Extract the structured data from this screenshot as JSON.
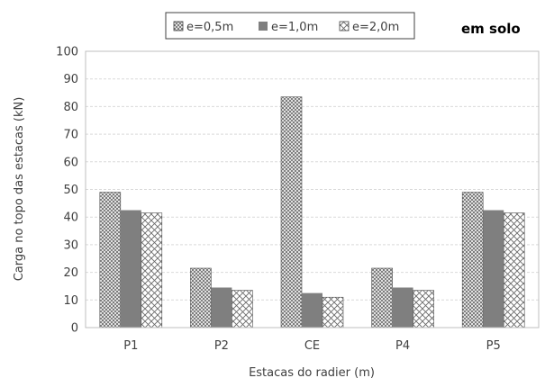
{
  "chart_data": {
    "type": "bar",
    "categories": [
      "P1",
      "P2",
      "CE",
      "P4",
      "P5"
    ],
    "series": [
      {
        "name": "e=0,5m",
        "values": [
          49,
          21.5,
          83.5,
          21.5,
          49
        ]
      },
      {
        "name": "e=1,0m",
        "values": [
          42.5,
          14.5,
          12.5,
          14.5,
          42.5
        ]
      },
      {
        "name": "e=2,0m",
        "values": [
          41.5,
          13.5,
          11,
          13.5,
          41.5
        ]
      }
    ],
    "title": "",
    "annotation": "em solo",
    "xlabel": "Estacas do radier (m)",
    "ylabel": "Carga no topo das estacas (kN)",
    "ylim": [
      0,
      100
    ],
    "yticks": [
      0,
      10,
      20,
      30,
      40,
      50,
      60,
      70,
      80,
      90,
      100
    ],
    "grid": true,
    "legend_position": "top",
    "colors": {
      "series1": "#ffffff",
      "series2": "#7f7f7f",
      "series3": "#ffffff",
      "pattern_stroke": "#606060",
      "grid": "#d9d9d9",
      "text": "#404040"
    }
  }
}
